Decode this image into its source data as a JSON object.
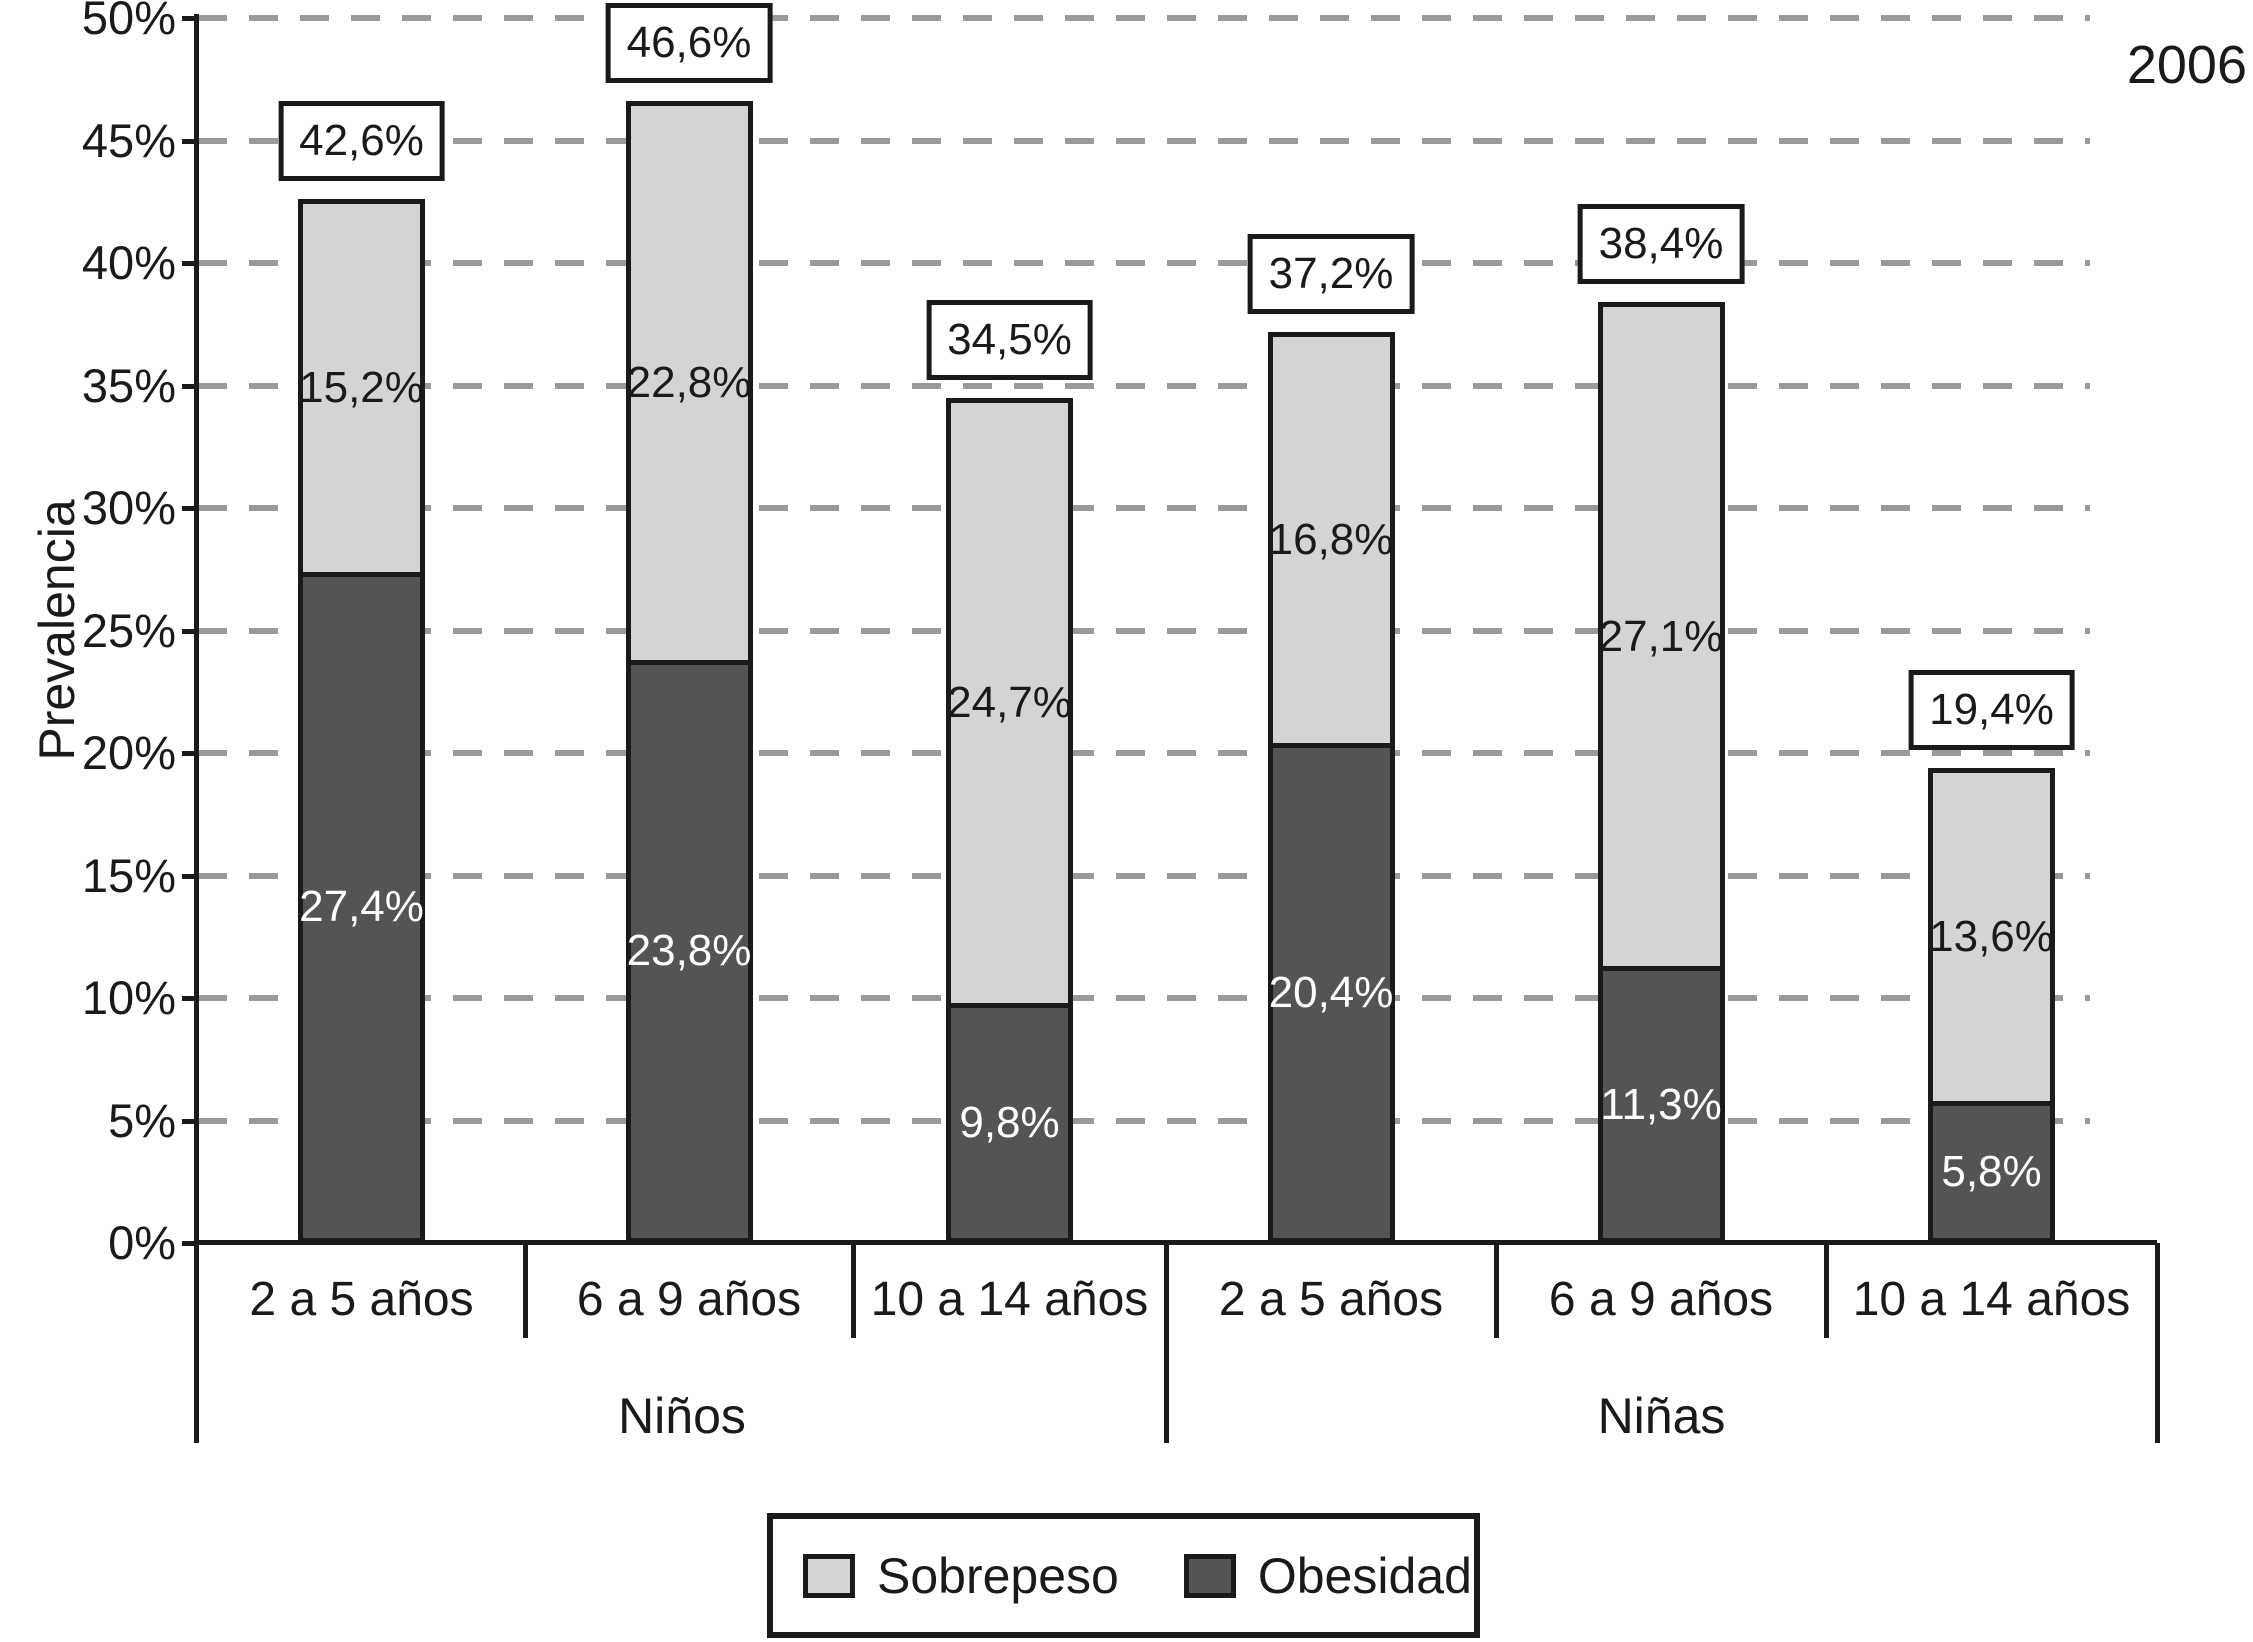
{
  "chart_data": {
    "type": "bar",
    "variant": "stacked-vertical",
    "year_label": "2006",
    "ylabel": "Prevalencia",
    "ylim": [
      0,
      50
    ],
    "y_tick_step": 5,
    "y_ticks": [
      "0%",
      "5%",
      "10%",
      "15%",
      "20%",
      "25%",
      "30%",
      "35%",
      "40%",
      "45%",
      "50%"
    ],
    "grid": "horizontal-dashed",
    "legend_position": "bottom-center",
    "groups": [
      {
        "label": "Niños",
        "categories": [
          "2 a 5 años",
          "6 a 9 años",
          "10 a 14 años"
        ]
      },
      {
        "label": "Niñas",
        "categories": [
          "2 a 5 años",
          "6 a 9 años",
          "10 a 14 años"
        ]
      }
    ],
    "series": [
      {
        "name": "Sobrepeso",
        "color": "#d4d4d4",
        "values": [
          15.2,
          22.8,
          24.7,
          16.8,
          27.1,
          13.6
        ]
      },
      {
        "name": "Obesidad",
        "color": "#545457",
        "values": [
          27.4,
          23.8,
          9.8,
          20.4,
          11.3,
          5.8
        ]
      }
    ],
    "bars": [
      {
        "group": "Niños",
        "category": "2 a 5 años",
        "sobrepeso": 15.2,
        "sobrepeso_label": "15,2%",
        "obesidad": 27.4,
        "obesidad_label": "27,4%",
        "total": 42.6,
        "total_label": "42,6%"
      },
      {
        "group": "Niños",
        "category": "6 a 9 años",
        "sobrepeso": 22.8,
        "sobrepeso_label": "22,8%",
        "obesidad": 23.8,
        "obesidad_label": "23,8%",
        "total": 46.6,
        "total_label": "46,6%"
      },
      {
        "group": "Niños",
        "category": "10 a 14 años",
        "sobrepeso": 24.7,
        "sobrepeso_label": "24,7%",
        "obesidad": 9.8,
        "obesidad_label": "9,8%",
        "total": 34.5,
        "total_label": "34,5%"
      },
      {
        "group": "Niñas",
        "category": "2 a 5 años",
        "sobrepeso": 16.8,
        "sobrepeso_label": "16,8%",
        "obesidad": 20.4,
        "obesidad_label": "20,4%",
        "total": 37.2,
        "total_label": "37,2%"
      },
      {
        "group": "Niñas",
        "category": "6 a 9 años",
        "sobrepeso": 27.1,
        "sobrepeso_label": "27,1%",
        "obesidad": 11.3,
        "obesidad_label": "11,3%",
        "total": 38.4,
        "total_label": "38,4%"
      },
      {
        "group": "Niñas",
        "category": "10 a 14 años",
        "sobrepeso": 13.6,
        "sobrepeso_label": "13,6%",
        "obesidad": 5.8,
        "obesidad_label": "5,8%",
        "total": 19.4,
        "total_label": "19,4%"
      }
    ],
    "colors": {
      "sobrepeso": "#d4d4d4",
      "obesidad": "#545457",
      "grid": "#9a9a9a",
      "ink": "#1a1a1a",
      "background": "#ffffff"
    }
  }
}
